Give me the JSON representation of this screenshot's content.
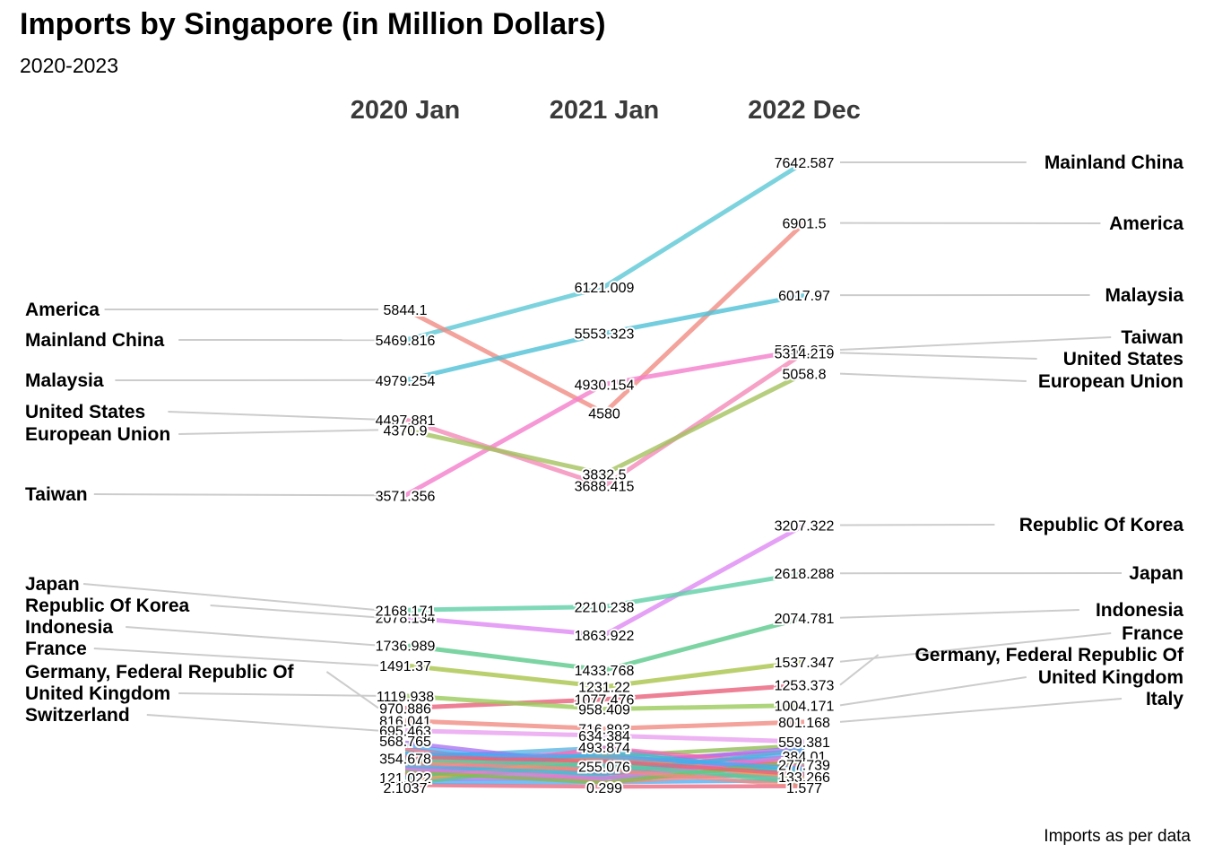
{
  "title": "Imports by Singapore (in Million Dollars)",
  "subtitle": "2020-2023",
  "caption": "Imports as per data",
  "chart_data": {
    "type": "slope",
    "title": "Imports by Singapore (in Million Dollars)",
    "subtitle": "2020-2023",
    "periods": [
      "2020 Jan",
      "2021 Jan",
      "2022 Dec"
    ],
    "ylim": [
      0,
      7800
    ],
    "series": [
      {
        "name": "Mainland China",
        "values": [
          5469.816,
          6121.009,
          7642.587
        ],
        "color": "#5bc8d6"
      },
      {
        "name": "America",
        "values": [
          5844.1,
          4580,
          6901.5
        ],
        "color": "#f08c82"
      },
      {
        "name": "Malaysia",
        "values": [
          4979.254,
          5553.323,
          6017.97
        ],
        "color": "#4fc0d6"
      },
      {
        "name": "Taiwan",
        "values": [
          3571.356,
          4930.154,
          5350.279
        ],
        "color": "#f47ecb"
      },
      {
        "name": "United States",
        "values": [
          4497.881,
          3688.415,
          5314.219
        ],
        "color": "#f48ab8"
      },
      {
        "name": "European Union",
        "values": [
          4370.9,
          3832.5,
          5058.8
        ],
        "color": "#a4c25e"
      },
      {
        "name": "Republic Of Korea",
        "values": [
          2078.134,
          1863.922,
          3207.322
        ],
        "color": "#df8af3"
      },
      {
        "name": "Japan",
        "values": [
          2168.171,
          2210.238,
          2618.288
        ],
        "color": "#5fd0a8"
      },
      {
        "name": "Indonesia",
        "values": [
          1736.989,
          1433.768,
          2074.781
        ],
        "color": "#5cc98c"
      },
      {
        "name": "France",
        "values": [
          1491.37,
          1231.22,
          1537.347
        ],
        "color": "#a9c44a"
      },
      {
        "name": "Germany, Federal Republic Of",
        "values": [
          970.886,
          1077.476,
          1253.373
        ],
        "color": "#e8607a"
      },
      {
        "name": "United Kingdom",
        "values": [
          1119.938,
          958.409,
          1004.171
        ],
        "color": "#9acb5a"
      },
      {
        "name": "Italy",
        "values": [
          816.041,
          716.893,
          801.168
        ],
        "color": "#f08c82"
      },
      {
        "name": "Switzerland",
        "values": [
          695.463,
          634.384,
          559.381
        ],
        "color": "#e8a0f0"
      }
    ],
    "extra_values": {
      "2020 Jan": [
        "568.765",
        "354.678",
        "121.022",
        "2.1037"
      ],
      "2021 Jan": [
        "493.874",
        "255.076",
        "0.299"
      ],
      "2022 Dec": [
        "384.01",
        "277.739",
        "133.266",
        "1.577"
      ]
    }
  }
}
